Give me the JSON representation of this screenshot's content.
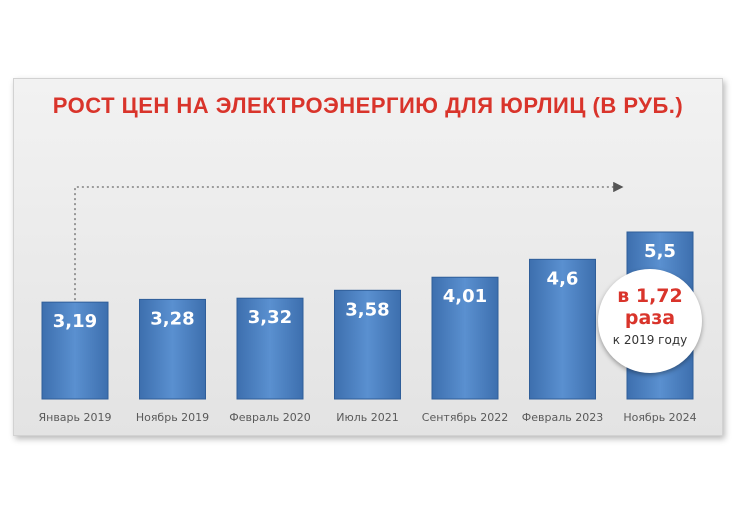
{
  "chart_data": {
    "type": "bar",
    "title": "РОСТ ЦЕН НА ЭЛЕКТРОЭНЕРГИЮ ДЛЯ ЮРЛИЦ (В РУБ.)",
    "categories": [
      "Январь 2019",
      "Ноябрь 2019",
      "Февраль 2020",
      "Июль 2021",
      "Сентябрь 2022",
      "Февраль 2023",
      "Ноябрь 2024"
    ],
    "values": [
      3.19,
      3.28,
      3.32,
      3.58,
      4.01,
      4.6,
      5.5
    ],
    "data_labels": [
      "3,19",
      "3,28",
      "3,32",
      "3,58",
      "4,01",
      "4,6",
      "5,5"
    ],
    "bar_color": "#4a7fc1",
    "grid": false,
    "annotation": {
      "line1": "в 1,72",
      "line2": "раза",
      "line3": "к 2019 году",
      "color": "#d9342b"
    }
  }
}
